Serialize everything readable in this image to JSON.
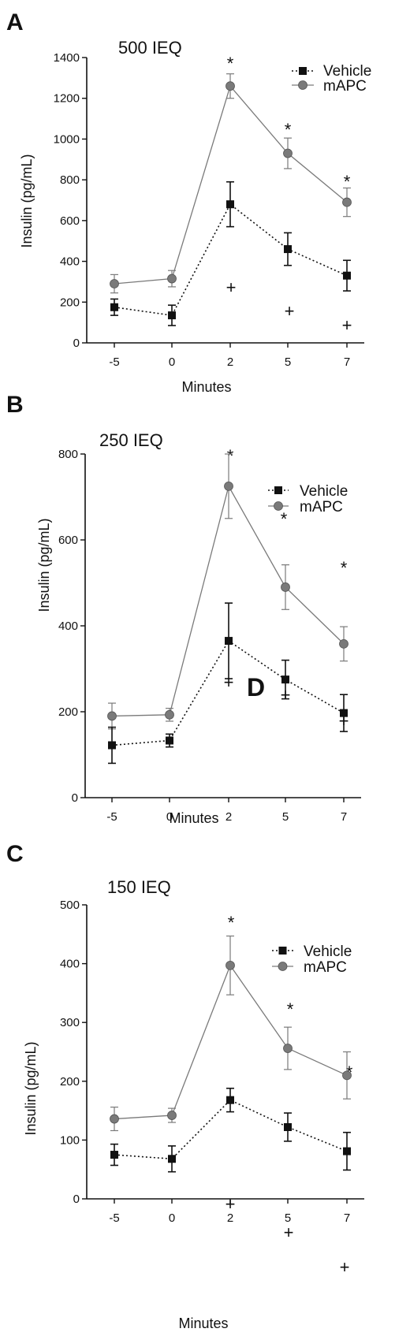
{
  "colors": {
    "vehicle": "#111111",
    "mapc": "#7a7a7a",
    "axis": "#111111"
  },
  "chart_data": [
    {
      "panel": "A",
      "type": "line",
      "title": "500 IEQ",
      "xlabel": "Minutes",
      "ylabel": "Insulin (pg/mL)",
      "categories": [
        "-5",
        "0",
        "2",
        "5",
        "7"
      ],
      "ylim": [
        0,
        1400
      ],
      "yticks": [
        "0",
        "200",
        "400",
        "600",
        "800",
        "1000",
        "1200",
        "1400"
      ],
      "legend": "top-right",
      "series": [
        {
          "name": "Vehicle",
          "marker": "square",
          "values": [
            175,
            135,
            680,
            460,
            330
          ],
          "errors": [
            40,
            50,
            110,
            80,
            75
          ]
        },
        {
          "name": "mAPC",
          "marker": "circle",
          "values": [
            290,
            315,
            1260,
            930,
            690
          ],
          "errors": [
            45,
            40,
            60,
            75,
            70
          ]
        }
      ],
      "annotations": [
        "*",
        "*",
        "*",
        "+",
        "+",
        "+"
      ]
    },
    {
      "panel": "B",
      "type": "line",
      "title": "250 IEQ",
      "xlabel": "Minutes",
      "ylabel": "Insulin (pg/mL)",
      "categories": [
        "-5",
        "0",
        "2",
        "5",
        "7"
      ],
      "ylim": [
        0,
        800
      ],
      "yticks": [
        "0",
        "200",
        "400",
        "600",
        "800"
      ],
      "legend": "top-right",
      "extra_label": "D",
      "series": [
        {
          "name": "Vehicle",
          "marker": "square",
          "values": [
            122,
            133,
            365,
            275,
            197
          ],
          "errors": [
            42,
            15,
            88,
            45,
            43
          ]
        },
        {
          "name": "mAPC",
          "marker": "circle",
          "values": [
            190,
            193,
            725,
            490,
            358
          ],
          "errors": [
            30,
            15,
            75,
            52,
            40
          ]
        }
      ],
      "annotations": [
        "*",
        "*",
        "*",
        "+",
        "+",
        "+"
      ]
    },
    {
      "panel": "C",
      "type": "line",
      "title": "150 IEQ",
      "xlabel": "Minutes",
      "ylabel": "Insulin (pg/mL)",
      "categories": [
        "-5",
        "0",
        "2",
        "5",
        "7"
      ],
      "ylim": [
        0,
        500
      ],
      "yticks": [
        "0",
        "100",
        "200",
        "300",
        "400",
        "500"
      ],
      "legend": "top-right",
      "series": [
        {
          "name": "Vehicle",
          "marker": "square",
          "values": [
            75,
            68,
            168,
            122,
            81
          ],
          "errors": [
            18,
            22,
            20,
            24,
            32
          ]
        },
        {
          "name": "mAPC",
          "marker": "circle",
          "values": [
            136,
            142,
            397,
            256,
            210
          ],
          "errors": [
            20,
            12,
            50,
            36,
            40
          ]
        }
      ],
      "annotations": [
        "*",
        "*",
        "*",
        "+",
        "+",
        "+"
      ]
    }
  ]
}
